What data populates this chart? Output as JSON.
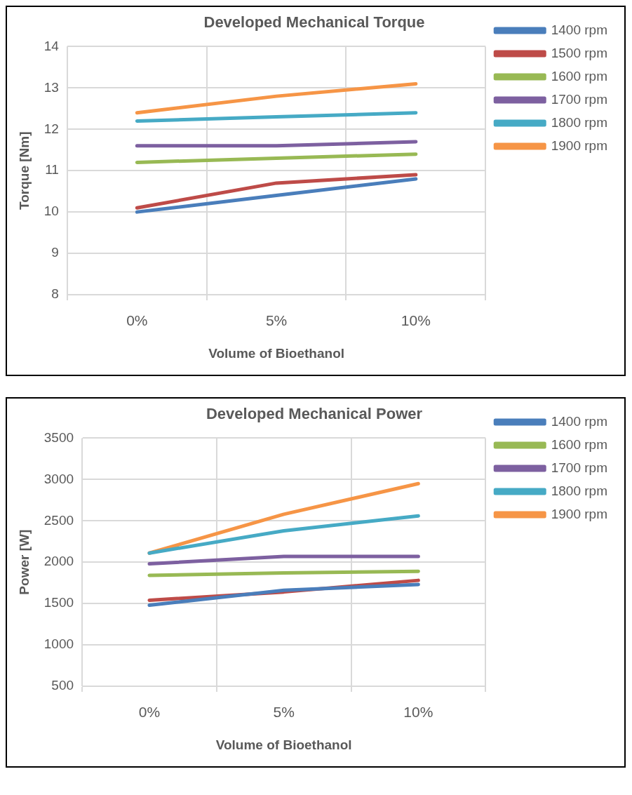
{
  "chart_data": [
    {
      "type": "line",
      "title": "Developed Mechanical Torque",
      "xlabel": "Volume of Bioethanol",
      "ylabel": "Torque [Nm]",
      "categories": [
        "0%",
        "5%",
        "10%"
      ],
      "ylim": [
        8,
        14
      ],
      "yticks": [
        8,
        9,
        10,
        11,
        12,
        13,
        14
      ],
      "grid": true,
      "legend": "top right",
      "marker": "none",
      "series": [
        {
          "name": "1400 rpm",
          "color": "#4a7ebb",
          "values": [
            10.0,
            10.4,
            10.8
          ]
        },
        {
          "name": "1500 rpm",
          "color": "#be4b48",
          "values": [
            10.1,
            10.7,
            10.9
          ]
        },
        {
          "name": "1600 rpm",
          "color": "#98b954",
          "values": [
            11.2,
            11.3,
            11.4
          ]
        },
        {
          "name": "1700 rpm",
          "color": "#7d60a0",
          "values": [
            11.6,
            11.6,
            11.7
          ]
        },
        {
          "name": "1800 rpm",
          "color": "#46aac5",
          "values": [
            12.2,
            12.3,
            12.4
          ]
        },
        {
          "name": "1900 rpm",
          "color": "#f69546",
          "values": [
            12.4,
            12.8,
            13.1
          ]
        }
      ]
    },
    {
      "type": "line",
      "title": "Developed Mechanical Power",
      "xlabel": "Volume of Bioethanol",
      "ylabel": "Power [W]",
      "categories": [
        "0%",
        "5%",
        "10%"
      ],
      "ylim": [
        500,
        3500
      ],
      "yticks": [
        500,
        1000,
        1500,
        2000,
        2500,
        3000,
        3500
      ],
      "grid": true,
      "legend": "top right",
      "marker": "none",
      "series": [
        {
          "name": "1400 rpm",
          "color": "#4a7ebb",
          "values": [
            1480,
            1660,
            1730
          ]
        },
        {
          "color": "#be4b48",
          "values": [
            1540,
            1640,
            1780
          ]
        },
        {
          "name": "1600 rpm",
          "color": "#98b954",
          "values": [
            1840,
            1870,
            1890
          ]
        },
        {
          "name": "1700 rpm",
          "color": "#7d60a0",
          "values": [
            1980,
            2070,
            2070
          ]
        },
        {
          "name": "1800 rpm",
          "color": "#46aac5",
          "values": [
            2110,
            2380,
            2560
          ]
        },
        {
          "name": "1900 rpm",
          "color": "#f69546",
          "values": [
            2110,
            2580,
            2950
          ]
        }
      ]
    }
  ]
}
